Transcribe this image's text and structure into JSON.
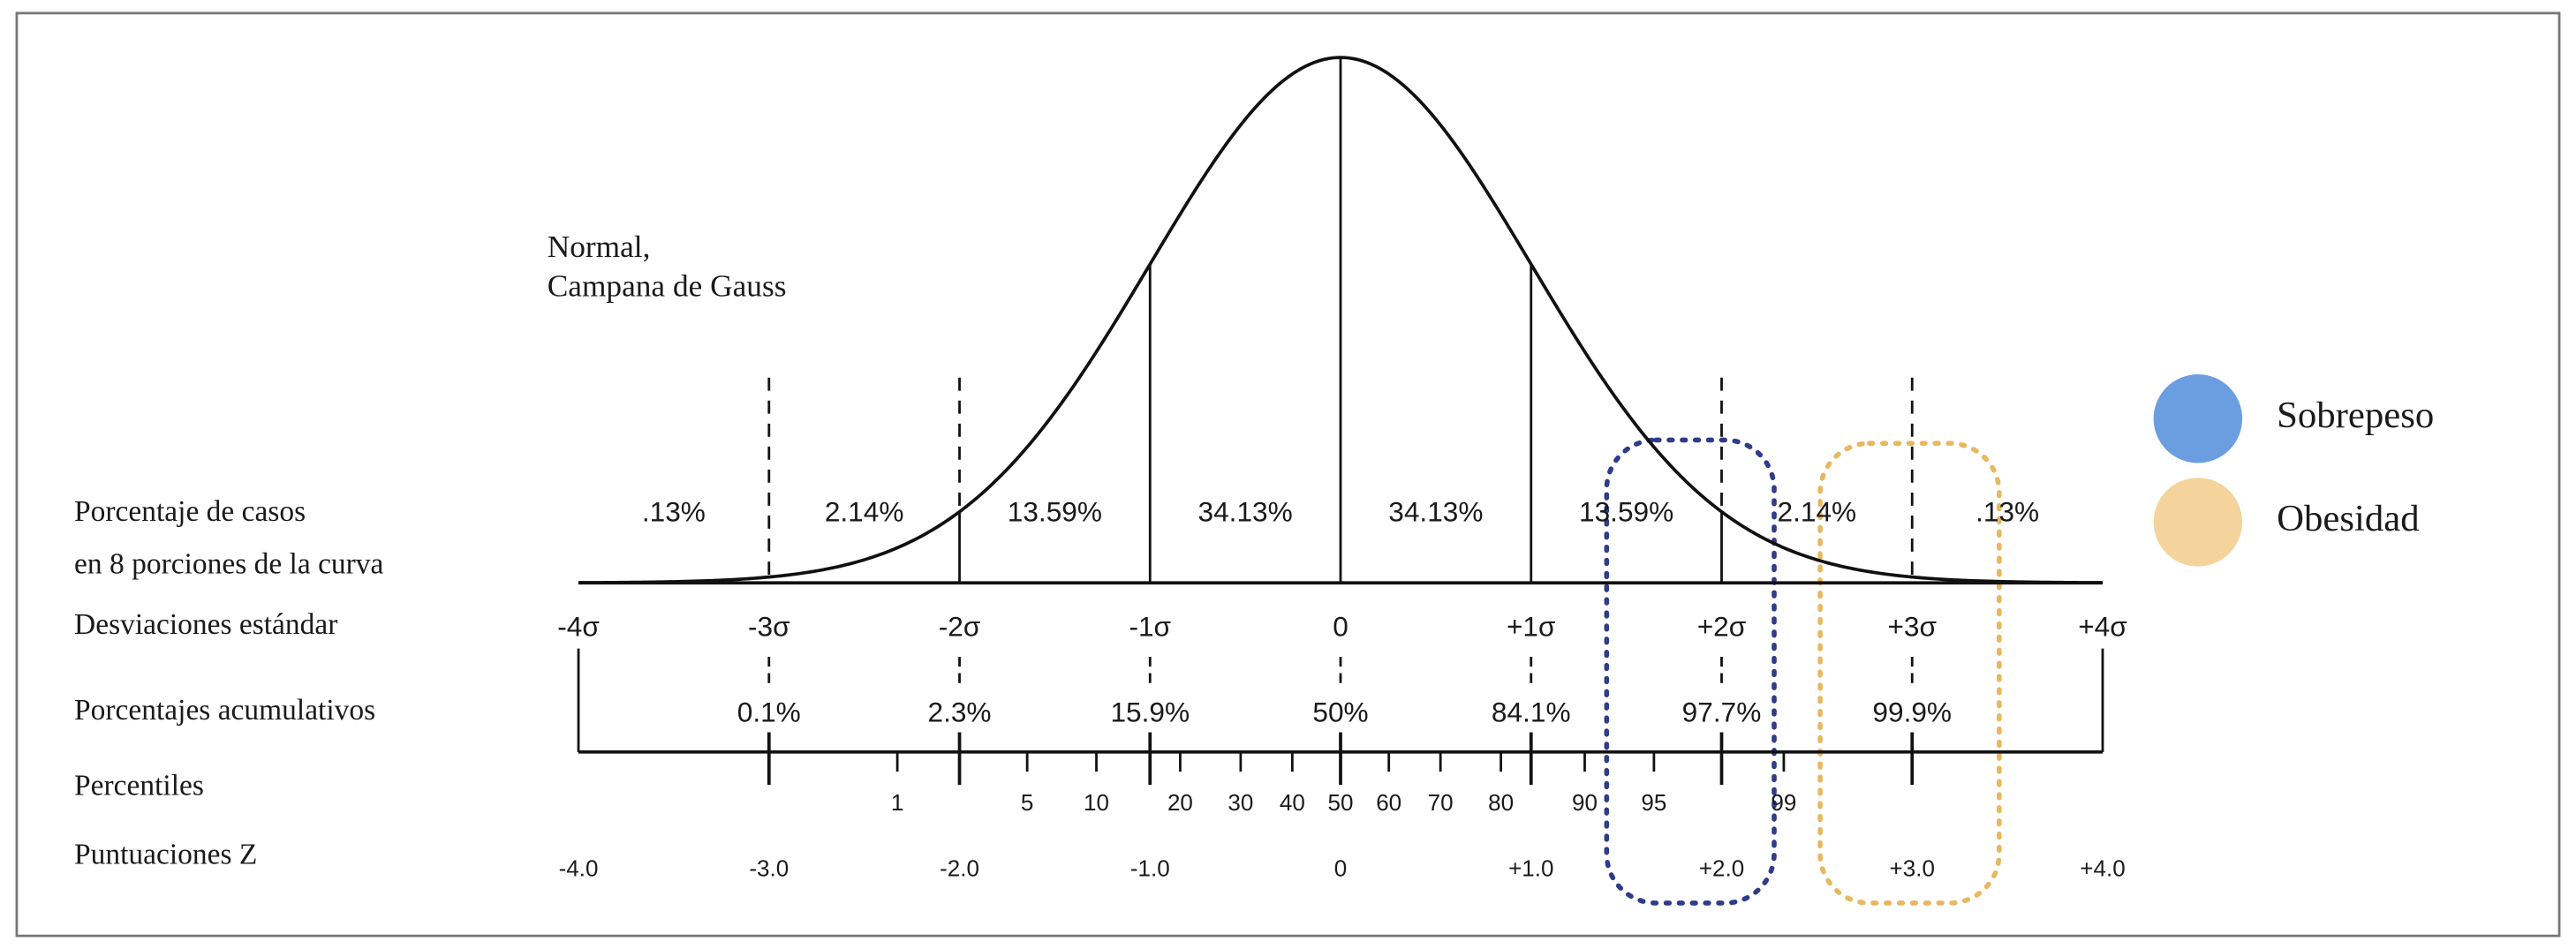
{
  "title": {
    "lines": [
      "Normal,",
      "Campana de Gauss"
    ]
  },
  "row_labels": [
    "Porcentaje de casos",
    "en 8 porciones de la curva",
    "Desviaciones estándar",
    "Porcentajes acumulativos",
    "Percentiles",
    "Puntuaciones Z"
  ],
  "segments": [
    ".13%",
    "2.14%",
    "13.59%",
    "34.13%",
    "34.13%",
    "13.59%",
    "2.14%",
    ".13%"
  ],
  "sigma_labels": [
    "-4σ",
    "-3σ",
    "-2σ",
    "-1σ",
    "0",
    "+1σ",
    "+2σ",
    "+3σ",
    "+4σ"
  ],
  "cumulative": [
    "0.1%",
    "2.3%",
    "15.9%",
    "50%",
    "84.1%",
    "97.7%",
    "99.9%"
  ],
  "percentiles": [
    "1",
    "5",
    "10",
    "20",
    "30",
    "40",
    "50",
    "60",
    "70",
    "80",
    "90",
    "95",
    "99"
  ],
  "z_scores": [
    "-4.0",
    "-3.0",
    "-2.0",
    "-1.0",
    "0",
    "+1.0",
    "+2.0",
    "+3.0",
    "+4.0"
  ],
  "legend": [
    {
      "label": "Sobrepeso",
      "color": "#6a9ee0"
    },
    {
      "label": "Obesidad",
      "color": "#f4d49c"
    }
  ]
}
